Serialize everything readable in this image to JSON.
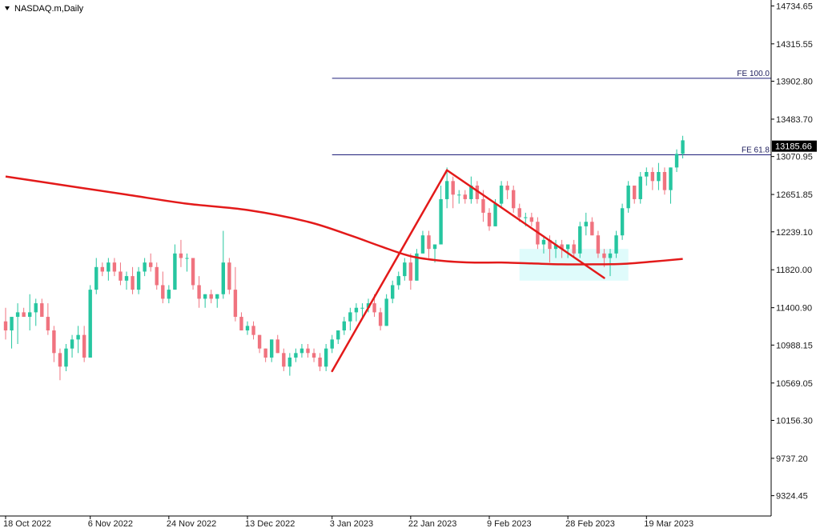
{
  "window": {
    "symbol_title": "NASDAQ.m,Daily",
    "menu_icon": "triangle-down-icon"
  },
  "colors": {
    "bull": "#26c6a0",
    "bear": "#f0737f",
    "ma": "#e31a1a",
    "pattern_lines": "#e31a1a",
    "fe_lines": "#1f1f7a",
    "highlight_zone": "#dffbfb",
    "price_tag_bg": "#000000",
    "axis": "#000000"
  },
  "chart_data": {
    "type": "candlestick",
    "title": "NASDAQ.m,Daily",
    "ylim": [
      9100,
      14800
    ],
    "y_ticks": [
      "14734.65",
      "14315.55",
      "13902.80",
      "13483.70",
      "13070.95",
      "12651.85",
      "12239.10",
      "11820.00",
      "11400.90",
      "10988.15",
      "10569.05",
      "10156.30",
      "9737.20",
      "9324.45"
    ],
    "x_labels": [
      {
        "label": "18 Oct 2022",
        "index": 0
      },
      {
        "label": "6 Nov 2022",
        "index": 14
      },
      {
        "label": "24 Nov 2022",
        "index": 27
      },
      {
        "label": "13 Dec 2022",
        "index": 40
      },
      {
        "label": "3 Jan 2023",
        "index": 54
      },
      {
        "label": "22 Jan 2023",
        "index": 67
      },
      {
        "label": "9 Feb 2023",
        "index": 80
      },
      {
        "label": "28 Feb 2023",
        "index": 93
      },
      {
        "label": "19 Mar 2023",
        "index": 106
      }
    ],
    "candles": [
      [
        11250,
        11400,
        11050,
        11150
      ],
      [
        11150,
        11250,
        10950,
        11300
      ],
      [
        11300,
        11450,
        11000,
        11350
      ],
      [
        11350,
        11400,
        11300,
        11300
      ],
      [
        11300,
        11550,
        11150,
        11350
      ],
      [
        11350,
        11500,
        11200,
        11450
      ],
      [
        11450,
        11500,
        11300,
        11300
      ],
      [
        11300,
        11450,
        11100,
        11150
      ],
      [
        11150,
        11200,
        10800,
        10900
      ],
      [
        10900,
        10950,
        10600,
        10750
      ],
      [
        10750,
        11000,
        10700,
        10950
      ],
      [
        10950,
        11100,
        10850,
        11050
      ],
      [
        11050,
        11200,
        10900,
        11100
      ],
      [
        11100,
        11200,
        10800,
        10850
      ],
      [
        10850,
        11650,
        10850,
        11600
      ],
      [
        11600,
        11950,
        11550,
        11850
      ],
      [
        11850,
        11900,
        11750,
        11800
      ],
      [
        11800,
        11950,
        11700,
        11900
      ],
      [
        11900,
        11950,
        11750,
        11800
      ],
      [
        11800,
        11900,
        11650,
        11700
      ],
      [
        11700,
        11800,
        11600,
        11750
      ],
      [
        11750,
        11850,
        11550,
        11600
      ],
      [
        11600,
        11850,
        11550,
        11800
      ],
      [
        11800,
        11950,
        11750,
        11900
      ],
      [
        11900,
        12000,
        11800,
        11850
      ],
      [
        11850,
        11900,
        11600,
        11650
      ],
      [
        11650,
        11800,
        11450,
        11500
      ],
      [
        11500,
        11650,
        11450,
        11600
      ],
      [
        11600,
        12100,
        11600,
        12000
      ],
      [
        12000,
        12150,
        11850,
        11950
      ],
      [
        11950,
        12000,
        11800,
        11950
      ],
      [
        11950,
        11950,
        11600,
        11650
      ],
      [
        11650,
        11750,
        11400,
        11500
      ],
      [
        11500,
        11550,
        11400,
        11550
      ],
      [
        11550,
        11600,
        11450,
        11500
      ],
      [
        11500,
        11550,
        11400,
        11550
      ],
      [
        11550,
        12250,
        11500,
        11900
      ],
      [
        11900,
        11950,
        11550,
        11600
      ],
      [
        11600,
        11850,
        11250,
        11300
      ],
      [
        11300,
        11350,
        11150,
        11150
      ],
      [
        11150,
        11250,
        11100,
        11200
      ],
      [
        11200,
        11250,
        11050,
        11100
      ],
      [
        11100,
        11100,
        10900,
        10950
      ],
      [
        10950,
        10950,
        10800,
        10850
      ],
      [
        10850,
        11050,
        10800,
        11050
      ],
      [
        11050,
        11100,
        10900,
        10900
      ],
      [
        10900,
        10950,
        10700,
        10750
      ],
      [
        10750,
        10900,
        10650,
        10850
      ],
      [
        10850,
        10950,
        10800,
        10900
      ],
      [
        10900,
        11000,
        10850,
        10950
      ],
      [
        10950,
        11000,
        10850,
        10900
      ],
      [
        10900,
        10950,
        10800,
        10850
      ],
      [
        10850,
        10900,
        10700,
        10750
      ],
      [
        10750,
        11000,
        10700,
        10950
      ],
      [
        10950,
        11100,
        10900,
        11050
      ],
      [
        11050,
        11150,
        11000,
        11150
      ],
      [
        11150,
        11300,
        11100,
        11250
      ],
      [
        11250,
        11400,
        11150,
        11350
      ],
      [
        11350,
        11450,
        11250,
        11400
      ],
      [
        11400,
        11450,
        11300,
        11400
      ],
      [
        11400,
        11500,
        11350,
        11450
      ],
      [
        11450,
        11550,
        11300,
        11350
      ],
      [
        11350,
        11400,
        11150,
        11200
      ],
      [
        11200,
        11550,
        11200,
        11500
      ],
      [
        11500,
        11700,
        11450,
        11650
      ],
      [
        11650,
        11800,
        11600,
        11750
      ],
      [
        11750,
        11950,
        11700,
        11900
      ],
      [
        11900,
        12000,
        11600,
        11700
      ],
      [
        11700,
        12050,
        11700,
        12000
      ],
      [
        12000,
        12250,
        12000,
        12200
      ],
      [
        12200,
        12250,
        11950,
        12050
      ],
      [
        12050,
        12100,
        11900,
        12100
      ],
      [
        12100,
        12750,
        12100,
        12600
      ],
      [
        12600,
        12950,
        12500,
        12800
      ],
      [
        12800,
        12850,
        12500,
        12650
      ],
      [
        12650,
        12700,
        12550,
        12650
      ],
      [
        12650,
        12700,
        12550,
        12600
      ],
      [
        12600,
        12850,
        12550,
        12750
      ],
      [
        12750,
        12800,
        12550,
        12600
      ],
      [
        12600,
        12700,
        12350,
        12450
      ],
      [
        12450,
        12500,
        12250,
        12300
      ],
      [
        12300,
        12600,
        12300,
        12550
      ],
      [
        12550,
        12800,
        12500,
        12750
      ],
      [
        12750,
        12800,
        12600,
        12700
      ],
      [
        12700,
        12750,
        12450,
        12500
      ],
      [
        12500,
        12550,
        12350,
        12400
      ],
      [
        12400,
        12450,
        12300,
        12400
      ],
      [
        12400,
        12450,
        12300,
        12350
      ],
      [
        12350,
        12400,
        12050,
        12100
      ],
      [
        12100,
        12200,
        12000,
        12150
      ],
      [
        12150,
        12200,
        11900,
        12050
      ],
      [
        12050,
        12150,
        11950,
        12100
      ],
      [
        12100,
        12150,
        11950,
        12050
      ],
      [
        12050,
        12100,
        11950,
        12100
      ],
      [
        12100,
        12150,
        11950,
        12000
      ],
      [
        12000,
        12350,
        11950,
        12300
      ],
      [
        12300,
        12450,
        12200,
        12350
      ],
      [
        12350,
        12400,
        12200,
        12200
      ],
      [
        12200,
        12250,
        11950,
        12000
      ],
      [
        12000,
        12050,
        11850,
        11950
      ],
      [
        11950,
        12050,
        11750,
        12000
      ],
      [
        12000,
        12250,
        11950,
        12200
      ],
      [
        12200,
        12550,
        12150,
        12500
      ],
      [
        12500,
        12800,
        12450,
        12750
      ],
      [
        12750,
        12750,
        12550,
        12600
      ],
      [
        12600,
        12900,
        12550,
        12850
      ],
      [
        12850,
        12950,
        12750,
        12900
      ],
      [
        12900,
        12950,
        12700,
        12800
      ],
      [
        12800,
        13000,
        12700,
        12900
      ],
      [
        12900,
        12950,
        12650,
        12700
      ],
      [
        12700,
        12950,
        12550,
        12950
      ],
      [
        12950,
        13150,
        12900,
        13100
      ],
      [
        13100,
        13300,
        13050,
        13250
      ]
    ],
    "moving_average": [
      [
        0,
        12850
      ],
      [
        10,
        12750
      ],
      [
        20,
        12650
      ],
      [
        30,
        12550
      ],
      [
        40,
        12480
      ],
      [
        50,
        12350
      ],
      [
        57,
        12200
      ],
      [
        62,
        12080
      ],
      [
        67,
        11970
      ],
      [
        72,
        11920
      ],
      [
        77,
        11900
      ],
      [
        82,
        11900
      ],
      [
        87,
        11890
      ],
      [
        92,
        11880
      ],
      [
        97,
        11880
      ],
      [
        102,
        11885
      ],
      [
        107,
        11910
      ],
      [
        112,
        11940
      ]
    ],
    "pattern_lines": [
      [
        [
          54,
          10700
        ],
        [
          73,
          12920
        ]
      ],
      [
        [
          73,
          12920
        ],
        [
          99,
          11730
        ]
      ]
    ],
    "fibonacci_levels": [
      {
        "label": "FE 100.0",
        "value": 13935
      },
      {
        "label": "FE 61.8",
        "value": 13090
      }
    ],
    "fib_start_index": 54,
    "highlight_zone": {
      "x_from": 85,
      "x_to": 103,
      "y_from": 11700,
      "y_to": 12050
    },
    "current_price": "13185.66",
    "current_value": 13185.66
  }
}
